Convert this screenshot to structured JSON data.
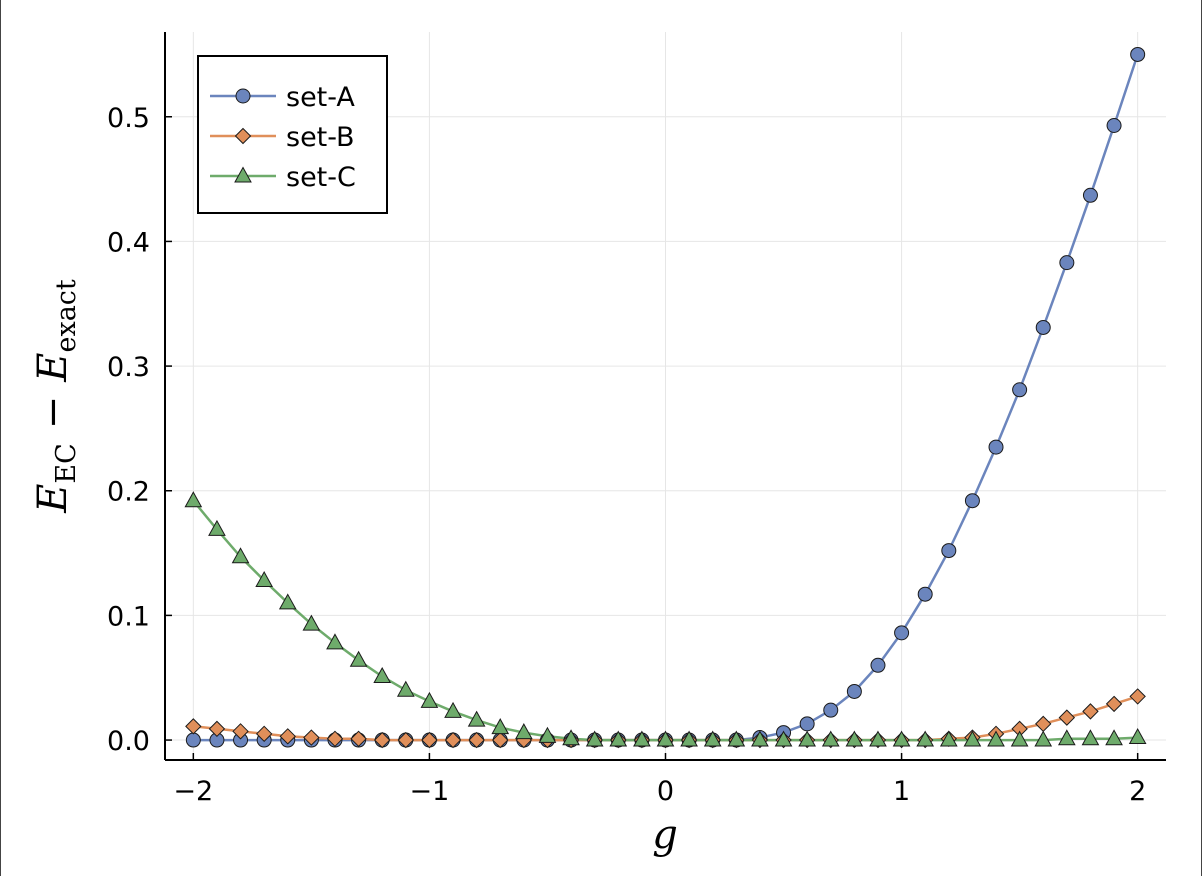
{
  "chart_data": {
    "type": "line",
    "xlabel": "g",
    "ylabel": {
      "main": "E",
      "sub1": "EC",
      "minus": "−",
      "main2": "E",
      "sub2": "exact"
    },
    "xlim": [
      -2.12,
      2.12
    ],
    "ylim": [
      -0.016,
      0.568
    ],
    "xticks": [
      {
        "value": -2,
        "label": "−2"
      },
      {
        "value": -1,
        "label": "−1"
      },
      {
        "value": 0,
        "label": "0"
      },
      {
        "value": 1,
        "label": "1"
      },
      {
        "value": 2,
        "label": "2"
      }
    ],
    "yticks": [
      {
        "value": 0.0,
        "label": "0.0"
      },
      {
        "value": 0.1,
        "label": "0.1"
      },
      {
        "value": 0.2,
        "label": "0.2"
      },
      {
        "value": 0.3,
        "label": "0.3"
      },
      {
        "value": 0.4,
        "label": "0.4"
      },
      {
        "value": 0.5,
        "label": "0.5"
      }
    ],
    "grid": true,
    "legend_position": "top-left",
    "x": [
      -2.0,
      -1.9,
      -1.8,
      -1.7,
      -1.6,
      -1.5,
      -1.4,
      -1.3,
      -1.2,
      -1.1,
      -1.0,
      -0.9,
      -0.8,
      -0.7,
      -0.6,
      -0.5,
      -0.4,
      -0.3,
      -0.2,
      -0.1,
      0.0,
      0.1,
      0.2,
      0.3,
      0.4,
      0.5,
      0.6,
      0.7,
      0.8,
      0.9,
      1.0,
      1.1,
      1.2,
      1.3,
      1.4,
      1.5,
      1.6,
      1.7,
      1.8,
      1.9,
      2.0
    ],
    "series": [
      {
        "name": "set-A",
        "marker": "circle",
        "color": "#6b85bd",
        "values": [
          0.0,
          0.0,
          0.0,
          0.0,
          0.0,
          0.0,
          0.0,
          0.0,
          0.0,
          0.0,
          0.0,
          0.0,
          0.0,
          0.0,
          0.0,
          0.0,
          0.0,
          0.0,
          0.0,
          0.0,
          0.0,
          0.0,
          0.0,
          0.0,
          0.002,
          0.006,
          0.013,
          0.024,
          0.039,
          0.06,
          0.086,
          0.117,
          0.152,
          0.192,
          0.235,
          0.281,
          0.331,
          0.383,
          0.437,
          0.493,
          0.55
        ]
      },
      {
        "name": "set-B",
        "marker": "diamond",
        "color": "#e08f5a",
        "values": [
          0.011,
          0.009,
          0.007,
          0.005,
          0.003,
          0.002,
          0.001,
          0.001,
          0.0,
          0.0,
          0.0,
          0.0,
          0.0,
          0.0,
          0.0,
          0.0,
          0.0,
          0.0,
          0.0,
          0.0,
          0.0,
          0.0,
          0.0,
          0.0,
          0.0,
          0.0,
          0.0,
          0.0,
          0.0,
          0.0,
          0.0,
          0.0,
          0.001,
          0.002,
          0.005,
          0.009,
          0.013,
          0.018,
          0.023,
          0.029,
          0.035
        ]
      },
      {
        "name": "set-C",
        "marker": "triangle",
        "color": "#6eab6b",
        "values": [
          0.192,
          0.169,
          0.147,
          0.128,
          0.11,
          0.093,
          0.078,
          0.064,
          0.051,
          0.04,
          0.031,
          0.023,
          0.016,
          0.01,
          0.006,
          0.003,
          0.001,
          0.0,
          0.0,
          0.0,
          0.0,
          0.0,
          0.0,
          0.0,
          0.0,
          0.0,
          0.0,
          0.0,
          0.0,
          0.0,
          0.0,
          0.0,
          0.0,
          0.0,
          0.0,
          0.0,
          0.0,
          0.001,
          0.001,
          0.001,
          0.002
        ]
      }
    ]
  }
}
